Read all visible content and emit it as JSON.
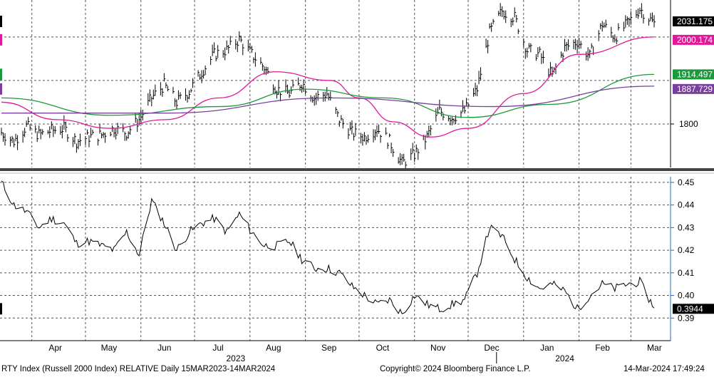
{
  "footer": {
    "left": "RTY Index (Russell 2000 Index) RELATIVE  Daily 15MAR2023-14MAR2024",
    "center": "Copyright© 2024 Bloomberg Finance L.P.",
    "right": "14-Mar-2024 17:49:24"
  },
  "colors": {
    "price": "#000000",
    "ma_short": "#e0189a",
    "ma_mid": "#1a9a3a",
    "ma_long": "#7a3f9d",
    "relative": "#000000",
    "axis_accent": "#1f6fbf"
  },
  "chart_data": [
    {
      "type": "line",
      "panel": "upper",
      "subtype": "bar (OHLC) with moving averages",
      "x_range": [
        "2023-03-15",
        "2024-03-14"
      ],
      "ylim": [
        1700,
        2085
      ],
      "y_ticks": [
        1800
      ],
      "grid": true,
      "price_path": [
        [
          "2023-03-15",
          1780
        ],
        [
          "2023-03-22",
          1760
        ],
        [
          "2023-03-29",
          1795
        ],
        [
          "2023-04-05",
          1775
        ],
        [
          "2023-04-12",
          1785
        ],
        [
          "2023-04-19",
          1790
        ],
        [
          "2023-04-26",
          1760
        ],
        [
          "2023-05-03",
          1770
        ],
        [
          "2023-05-10",
          1775
        ],
        [
          "2023-05-17",
          1790
        ],
        [
          "2023-05-24",
          1780
        ],
        [
          "2023-05-31",
          1810
        ],
        [
          "2023-06-07",
          1860
        ],
        [
          "2023-06-14",
          1890
        ],
        [
          "2023-06-21",
          1850
        ],
        [
          "2023-06-28",
          1875
        ],
        [
          "2023-07-05",
          1920
        ],
        [
          "2023-07-12",
          1960
        ],
        [
          "2023-07-19",
          1970
        ],
        [
          "2023-07-26",
          1995
        ],
        [
          "2023-08-02",
          1960
        ],
        [
          "2023-08-09",
          1930
        ],
        [
          "2023-08-16",
          1880
        ],
        [
          "2023-08-23",
          1870
        ],
        [
          "2023-08-30",
          1895
        ],
        [
          "2023-09-06",
          1860
        ],
        [
          "2023-09-13",
          1870
        ],
        [
          "2023-09-20",
          1810
        ],
        [
          "2023-09-27",
          1780
        ],
        [
          "2023-10-04",
          1770
        ],
        [
          "2023-10-11",
          1790
        ],
        [
          "2023-10-18",
          1760
        ],
        [
          "2023-10-25",
          1710
        ],
        [
          "2023-11-01",
          1730
        ],
        [
          "2023-11-08",
          1770
        ],
        [
          "2023-11-15",
          1830
        ],
        [
          "2023-11-22",
          1815
        ],
        [
          "2023-11-29",
          1830
        ],
        [
          "2023-12-06",
          1880
        ],
        [
          "2023-12-13",
          2010
        ],
        [
          "2023-12-20",
          2060
        ],
        [
          "2023-12-27",
          2045
        ],
        [
          "2024-01-03",
          1970
        ],
        [
          "2024-01-10",
          1960
        ],
        [
          "2024-01-17",
          1910
        ],
        [
          "2024-01-24",
          1975
        ],
        [
          "2024-01-31",
          1990
        ],
        [
          "2024-02-07",
          1955
        ],
        [
          "2024-02-14",
          2030
        ],
        [
          "2024-02-21",
          2000
        ],
        [
          "2024-02-28",
          2030
        ],
        [
          "2024-03-06",
          2065
        ],
        [
          "2024-03-14",
          2031
        ]
      ],
      "series": [
        {
          "name": "",
          "values": [],
          "last": "2031.175"
        },
        {
          "name": "",
          "last": "2000.174",
          "path": [
            [
              "2023-03-15",
              1850
            ],
            [
              "2023-04-15",
              1810
            ],
            [
              "2023-05-15",
              1790
            ],
            [
              "2023-06-15",
              1810
            ],
            [
              "2023-07-15",
              1860
            ],
            [
              "2023-08-15",
              1920
            ],
            [
              "2023-09-15",
              1900
            ],
            [
              "2023-10-01",
              1860
            ],
            [
              "2023-10-20",
              1805
            ],
            [
              "2023-11-10",
              1770
            ],
            [
              "2023-12-01",
              1790
            ],
            [
              "2024-01-01",
              1870
            ],
            [
              "2024-02-01",
              1960
            ],
            [
              "2024-03-14",
              2000
            ]
          ]
        },
        {
          "name": "",
          "last": "1914.497",
          "path": [
            [
              "2023-03-15",
              1860
            ],
            [
              "2023-05-15",
              1820
            ],
            [
              "2023-07-15",
              1840
            ],
            [
              "2023-09-01",
              1880
            ],
            [
              "2023-10-15",
              1860
            ],
            [
              "2023-12-01",
              1815
            ],
            [
              "2024-01-15",
              1845
            ],
            [
              "2024-03-14",
              1914
            ]
          ]
        },
        {
          "name": "",
          "last": "1887.729",
          "path": [
            [
              "2023-03-15",
              1825
            ],
            [
              "2023-06-15",
              1825
            ],
            [
              "2023-09-15",
              1860
            ],
            [
              "2023-12-15",
              1840
            ],
            [
              "2024-03-14",
              1887
            ]
          ]
        }
      ]
    },
    {
      "type": "line",
      "panel": "lower",
      "series_name": "RELATIVE",
      "ylim": [
        0.38,
        0.4525
      ],
      "y_ticks": [
        "0.45",
        "0.44",
        "0.43",
        "0.42",
        "0.41",
        "0.40",
        "0.39"
      ],
      "last": "0.3944",
      "x": [
        "2023-03-15",
        "2023-03-22",
        "2023-03-29",
        "2023-04-05",
        "2023-04-12",
        "2023-04-19",
        "2023-04-26",
        "2023-05-03",
        "2023-05-10",
        "2023-05-17",
        "2023-05-24",
        "2023-05-31",
        "2023-06-07",
        "2023-06-14",
        "2023-06-21",
        "2023-06-28",
        "2023-07-05",
        "2023-07-12",
        "2023-07-19",
        "2023-07-26",
        "2023-08-02",
        "2023-08-09",
        "2023-08-16",
        "2023-08-23",
        "2023-08-30",
        "2023-09-06",
        "2023-09-13",
        "2023-09-20",
        "2023-09-27",
        "2023-10-04",
        "2023-10-11",
        "2023-10-18",
        "2023-10-25",
        "2023-11-01",
        "2023-11-08",
        "2023-11-15",
        "2023-11-22",
        "2023-11-29",
        "2023-12-06",
        "2023-12-13",
        "2023-12-20",
        "2023-12-27",
        "2024-01-03",
        "2024-01-10",
        "2024-01-17",
        "2024-01-24",
        "2024-01-31",
        "2024-02-07",
        "2024-02-14",
        "2024-02-21",
        "2024-02-28",
        "2024-03-06",
        "2024-03-14"
      ],
      "values": [
        0.45,
        0.44,
        0.437,
        0.43,
        0.434,
        0.432,
        0.423,
        0.424,
        0.422,
        0.42,
        0.428,
        0.418,
        0.442,
        0.432,
        0.42,
        0.428,
        0.432,
        0.434,
        0.428,
        0.436,
        0.428,
        0.422,
        0.422,
        0.424,
        0.416,
        0.412,
        0.412,
        0.41,
        0.404,
        0.4,
        0.396,
        0.398,
        0.392,
        0.4,
        0.396,
        0.394,
        0.396,
        0.398,
        0.41,
        0.43,
        0.426,
        0.416,
        0.408,
        0.403,
        0.405,
        0.402,
        0.394,
        0.4,
        0.405,
        0.403,
        0.405,
        0.406,
        0.3944
      ]
    }
  ],
  "x_axis": {
    "months": [
      {
        "label": "Apr",
        "date": "2023-04-01"
      },
      {
        "label": "May",
        "date": "2023-05-01"
      },
      {
        "label": "Jun",
        "date": "2023-06-01"
      },
      {
        "label": "Jul",
        "date": "2023-07-01"
      },
      {
        "label": "Aug",
        "date": "2023-08-01"
      },
      {
        "label": "Sep",
        "date": "2023-09-01"
      },
      {
        "label": "Oct",
        "date": "2023-10-01"
      },
      {
        "label": "Nov",
        "date": "2023-11-01"
      },
      {
        "label": "Dec",
        "date": "2023-12-01"
      },
      {
        "label": "Jan",
        "date": "2024-01-01"
      },
      {
        "label": "Feb",
        "date": "2024-02-01"
      },
      {
        "label": "Mar",
        "date": "2024-03-01"
      }
    ],
    "years": [
      {
        "label": "2023",
        "date": "2023-08-01"
      },
      {
        "label": "2024",
        "date": "2024-02-01"
      }
    ],
    "year_boundary": "2024-01-01"
  }
}
